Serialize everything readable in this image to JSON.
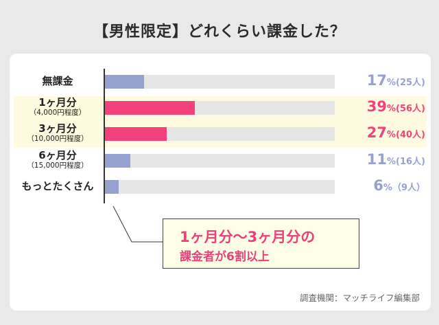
{
  "title": "【男性限定】どれくらい課金した？",
  "chart_data": {
    "type": "bar",
    "orientation": "horizontal",
    "title": "【男性限定】どれくらい課金した？",
    "categories": [
      {
        "label": "無課金",
        "sub": ""
      },
      {
        "label": "1ヶ月分",
        "sub": "（4,000円程度）"
      },
      {
        "label": "3ヶ月分",
        "sub": "（10,000円程度）"
      },
      {
        "label": "6ヶ月分",
        "sub": "（15,000円程度）"
      },
      {
        "label": "もっとたくさん",
        "sub": ""
      }
    ],
    "values": [
      17,
      39,
      27,
      11,
      6
    ],
    "pct_labels": [
      "17",
      "39",
      "27",
      "11",
      "6"
    ],
    "pct_unit": "%",
    "count_labels": [
      "(25人)",
      "(56人)",
      "(40人)",
      "(16人)",
      "（9人）"
    ],
    "highlighted": [
      false,
      true,
      true,
      false,
      false
    ],
    "xlim": [
      0,
      100
    ],
    "colors": {
      "normal": "#97a1cf",
      "highlight": "#f2417d",
      "track": "#e6e6e6",
      "band": "#fefbe0"
    }
  },
  "callout": {
    "line1": "1ヶ月分〜3ヶ月分の",
    "line2": "課金者が6割以上"
  },
  "source": "調査機関：マッチライフ編集部"
}
